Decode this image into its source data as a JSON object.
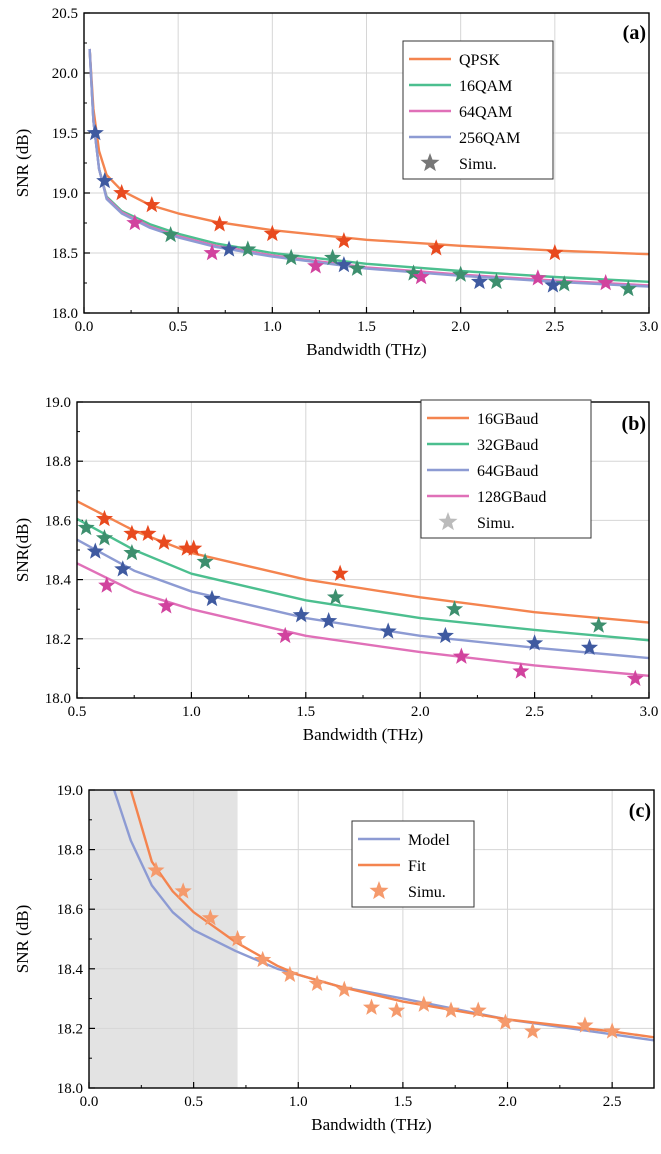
{
  "chart_data": [
    {
      "type": "line",
      "panel": "(a)",
      "xlabel": "Bandwidth (THz)",
      "ylabel": "SNR (dB)",
      "xlim": [
        0.0,
        3.0
      ],
      "ylim": [
        18.0,
        20.5
      ],
      "xticks": [
        "0.0",
        "0.5",
        "1.0",
        "1.5",
        "2.0",
        "2.5",
        "3.0"
      ],
      "yticks": [
        "18.0",
        "18.5",
        "19.0",
        "19.5",
        "20.0",
        "20.5"
      ],
      "grid": true,
      "legend_position": "top-right",
      "series": [
        {
          "name": "QPSK",
          "color": "#f4844f",
          "curve": [
            [
              0.03,
              20.2
            ],
            [
              0.05,
              19.7
            ],
            [
              0.08,
              19.35
            ],
            [
              0.12,
              19.15
            ],
            [
              0.2,
              19.02
            ],
            [
              0.35,
              18.9
            ],
            [
              0.5,
              18.83
            ],
            [
              0.7,
              18.76
            ],
            [
              1.0,
              18.69
            ],
            [
              1.5,
              18.61
            ],
            [
              2.0,
              18.56
            ],
            [
              2.5,
              18.52
            ],
            [
              3.0,
              18.49
            ]
          ],
          "marker_color": "#e84a1f",
          "points": [
            [
              0.2,
              19.0
            ],
            [
              0.36,
              18.9
            ],
            [
              0.72,
              18.74
            ],
            [
              1.0,
              18.66
            ],
            [
              1.38,
              18.6
            ],
            [
              1.87,
              18.54
            ],
            [
              2.5,
              18.5
            ]
          ]
        },
        {
          "name": "16QAM",
          "color": "#4cbf8f",
          "curve": [
            [
              0.03,
              20.2
            ],
            [
              0.05,
              19.6
            ],
            [
              0.08,
              19.2
            ],
            [
              0.12,
              18.97
            ],
            [
              0.2,
              18.85
            ],
            [
              0.35,
              18.74
            ],
            [
              0.5,
              18.66
            ],
            [
              0.7,
              18.58
            ],
            [
              1.0,
              18.5
            ],
            [
              1.5,
              18.41
            ],
            [
              2.0,
              18.35
            ],
            [
              2.5,
              18.3
            ],
            [
              3.0,
              18.26
            ]
          ],
          "marker_color": "#3d8f6e",
          "points": [
            [
              0.46,
              18.65
            ],
            [
              0.87,
              18.53
            ],
            [
              1.1,
              18.46
            ],
            [
              1.32,
              18.46
            ],
            [
              1.45,
              18.37
            ],
            [
              1.75,
              18.33
            ],
            [
              2.0,
              18.32
            ],
            [
              2.19,
              18.26
            ],
            [
              2.55,
              18.24
            ],
            [
              2.89,
              18.2
            ]
          ]
        },
        {
          "name": "64QAM",
          "color": "#e070b8",
          "curve": [
            [
              0.03,
              20.2
            ],
            [
              0.05,
              19.6
            ],
            [
              0.08,
              19.2
            ],
            [
              0.12,
              18.96
            ],
            [
              0.2,
              18.84
            ],
            [
              0.35,
              18.72
            ],
            [
              0.5,
              18.64
            ],
            [
              0.7,
              18.56
            ],
            [
              1.0,
              18.48
            ],
            [
              1.5,
              18.38
            ],
            [
              2.0,
              18.32
            ],
            [
              2.5,
              18.27
            ],
            [
              3.0,
              18.23
            ]
          ],
          "marker_color": "#d1439e",
          "points": [
            [
              0.27,
              18.75
            ],
            [
              0.68,
              18.5
            ],
            [
              1.23,
              18.39
            ],
            [
              1.79,
              18.3
            ],
            [
              2.41,
              18.29
            ],
            [
              2.77,
              18.25
            ]
          ]
        },
        {
          "name": "256QAM",
          "color": "#8d9bd3",
          "curve": [
            [
              0.03,
              20.2
            ],
            [
              0.05,
              19.6
            ],
            [
              0.08,
              19.2
            ],
            [
              0.12,
              18.95
            ],
            [
              0.2,
              18.83
            ],
            [
              0.35,
              18.71
            ],
            [
              0.5,
              18.63
            ],
            [
              0.7,
              18.55
            ],
            [
              1.0,
              18.47
            ],
            [
              1.5,
              18.37
            ],
            [
              2.0,
              18.31
            ],
            [
              2.5,
              18.26
            ],
            [
              3.0,
              18.22
            ]
          ],
          "marker_color": "#3f5aa0",
          "points": [
            [
              0.06,
              19.5
            ],
            [
              0.11,
              19.1
            ],
            [
              0.77,
              18.53
            ],
            [
              1.38,
              18.4
            ],
            [
              2.1,
              18.26
            ],
            [
              2.49,
              18.23
            ]
          ]
        }
      ],
      "legend": [
        {
          "label": "QPSK",
          "kind": "line",
          "color": "#f4844f"
        },
        {
          "label": "16QAM",
          "kind": "line",
          "color": "#4cbf8f"
        },
        {
          "label": "64QAM",
          "kind": "line",
          "color": "#e070b8"
        },
        {
          "label": "256QAM",
          "kind": "line",
          "color": "#8d9bd3"
        },
        {
          "label": "Simu.",
          "kind": "star",
          "color": "#777777"
        }
      ]
    },
    {
      "type": "line",
      "panel": "(b)",
      "xlabel": "Bandwidth (THz)",
      "ylabel": "SNR(dB)",
      "xlim": [
        0.5,
        3.0
      ],
      "ylim": [
        18.0,
        19.0
      ],
      "xticks": [
        "0.5",
        "1.0",
        "1.5",
        "2.0",
        "2.5",
        "3.0"
      ],
      "yticks": [
        "18.0",
        "18.2",
        "18.4",
        "18.6",
        "18.8",
        "19.0"
      ],
      "grid": true,
      "legend_position": "top-right",
      "series": [
        {
          "name": "16GBaud",
          "color": "#f4844f",
          "curve": [
            [
              0.5,
              18.665
            ],
            [
              0.75,
              18.565
            ],
            [
              1.0,
              18.49
            ],
            [
              1.5,
              18.4
            ],
            [
              2.0,
              18.34
            ],
            [
              2.5,
              18.29
            ],
            [
              3.0,
              18.255
            ]
          ],
          "marker_color": "#e84a1f",
          "points": [
            [
              0.62,
              18.605
            ],
            [
              0.74,
              18.555
            ],
            [
              0.81,
              18.555
            ],
            [
              0.88,
              18.525
            ],
            [
              0.98,
              18.505
            ],
            [
              1.01,
              18.505
            ],
            [
              1.65,
              18.42
            ]
          ]
        },
        {
          "name": "32GBaud",
          "color": "#4cbf8f",
          "curve": [
            [
              0.5,
              18.605
            ],
            [
              0.75,
              18.5
            ],
            [
              1.0,
              18.42
            ],
            [
              1.5,
              18.33
            ],
            [
              2.0,
              18.27
            ],
            [
              2.5,
              18.23
            ],
            [
              3.0,
              18.195
            ]
          ],
          "marker_color": "#3d8f6e",
          "points": [
            [
              0.54,
              18.575
            ],
            [
              0.62,
              18.54
            ],
            [
              0.74,
              18.49
            ],
            [
              1.06,
              18.46
            ],
            [
              1.63,
              18.34
            ],
            [
              2.15,
              18.3
            ],
            [
              2.78,
              18.245
            ]
          ]
        },
        {
          "name": "64GBaud",
          "color": "#8d9bd3",
          "curve": [
            [
              0.5,
              18.535
            ],
            [
              0.75,
              18.43
            ],
            [
              1.0,
              18.36
            ],
            [
              1.5,
              18.27
            ],
            [
              2.0,
              18.21
            ],
            [
              2.5,
              18.17
            ],
            [
              3.0,
              18.135
            ]
          ],
          "marker_color": "#3f5aa0",
          "points": [
            [
              0.58,
              18.495
            ],
            [
              0.7,
              18.435
            ],
            [
              1.09,
              18.335
            ],
            [
              1.48,
              18.28
            ],
            [
              1.6,
              18.26
            ],
            [
              1.86,
              18.225
            ],
            [
              2.11,
              18.21
            ],
            [
              2.5,
              18.185
            ],
            [
              2.74,
              18.17
            ]
          ]
        },
        {
          "name": "128GBaud",
          "color": "#e070b8",
          "curve": [
            [
              0.5,
              18.455
            ],
            [
              0.75,
              18.36
            ],
            [
              1.0,
              18.3
            ],
            [
              1.5,
              18.21
            ],
            [
              2.0,
              18.155
            ],
            [
              2.5,
              18.11
            ],
            [
              3.0,
              18.075
            ]
          ],
          "marker_color": "#d1439e",
          "points": [
            [
              0.63,
              18.38
            ],
            [
              0.89,
              18.31
            ],
            [
              1.41,
              18.21
            ],
            [
              2.18,
              18.14
            ],
            [
              2.44,
              18.09
            ],
            [
              2.94,
              18.065
            ]
          ]
        }
      ],
      "legend": [
        {
          "label": "16GBaud",
          "kind": "line",
          "color": "#f4844f"
        },
        {
          "label": "32GBaud",
          "kind": "line",
          "color": "#4cbf8f"
        },
        {
          "label": "64GBaud",
          "kind": "line",
          "color": "#8d9bd3"
        },
        {
          "label": "128GBaud",
          "kind": "line",
          "color": "#e070b8"
        },
        {
          "label": "Simu.",
          "kind": "star",
          "color": "#bbbbbb"
        }
      ]
    },
    {
      "type": "line",
      "panel": "(c)",
      "xlabel": "Bandwidth (THz)",
      "ylabel": "SNR (dB)",
      "xlim": [
        0.0,
        2.7
      ],
      "ylim": [
        18.0,
        19.0
      ],
      "xticks": [
        "0.0",
        "0.5",
        "1.0",
        "1.5",
        "2.0",
        "2.5"
      ],
      "yticks": [
        "18.0",
        "18.2",
        "18.4",
        "18.6",
        "18.8",
        "19.0"
      ],
      "grid": true,
      "legend_position": "top-right",
      "shaded_region_x": [
        0.0,
        0.71
      ],
      "series": [
        {
          "name": "Model",
          "color": "#8d9bd3",
          "curve": [
            [
              0.12,
              19.0
            ],
            [
              0.2,
              18.83
            ],
            [
              0.3,
              18.68
            ],
            [
              0.4,
              18.59
            ],
            [
              0.5,
              18.53
            ],
            [
              0.7,
              18.46
            ],
            [
              0.9,
              18.4
            ],
            [
              1.0,
              18.38
            ],
            [
              1.2,
              18.34
            ],
            [
              1.5,
              18.3
            ],
            [
              2.0,
              18.23
            ],
            [
              2.5,
              18.18
            ],
            [
              2.7,
              18.16
            ]
          ]
        },
        {
          "name": "Fit",
          "color": "#f4844f",
          "curve": [
            [
              0.2,
              19.0
            ],
            [
              0.3,
              18.76
            ],
            [
              0.4,
              18.66
            ],
            [
              0.5,
              18.59
            ],
            [
              0.7,
              18.49
            ],
            [
              0.9,
              18.41
            ],
            [
              1.0,
              18.38
            ],
            [
              1.2,
              18.34
            ],
            [
              1.5,
              18.29
            ],
            [
              2.0,
              18.23
            ],
            [
              2.5,
              18.19
            ],
            [
              2.7,
              18.17
            ]
          ]
        },
        {
          "name": "Simu.",
          "color": "#f4844f",
          "marker_color": "#f59a6c",
          "points": [
            [
              0.32,
              18.73
            ],
            [
              0.45,
              18.66
            ],
            [
              0.58,
              18.57
            ],
            [
              0.71,
              18.5
            ],
            [
              0.83,
              18.43
            ],
            [
              0.96,
              18.38
            ],
            [
              1.09,
              18.35
            ],
            [
              1.22,
              18.33
            ],
            [
              1.35,
              18.27
            ],
            [
              1.47,
              18.26
            ],
            [
              1.6,
              18.28
            ],
            [
              1.73,
              18.26
            ],
            [
              1.86,
              18.26
            ],
            [
              1.99,
              18.22
            ],
            [
              2.12,
              18.19
            ],
            [
              2.37,
              18.21
            ],
            [
              2.5,
              18.19
            ]
          ]
        }
      ],
      "legend": [
        {
          "label": "Model",
          "kind": "line",
          "color": "#8d9bd3"
        },
        {
          "label": "Fit",
          "kind": "line",
          "color": "#f4844f"
        },
        {
          "label": "Simu.",
          "kind": "star",
          "color": "#f59a6c"
        }
      ]
    }
  ]
}
